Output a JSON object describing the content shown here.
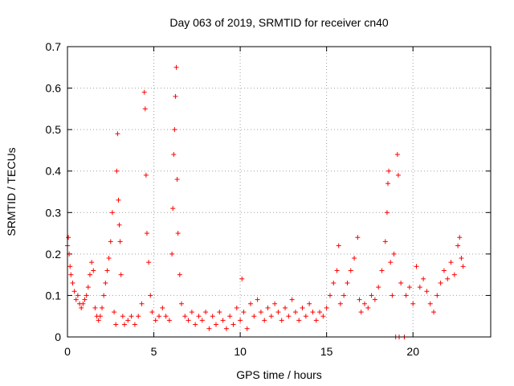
{
  "chart_data": {
    "type": "scatter",
    "title": "Day 063 of 2019, SRMTID for receiver cn40",
    "xlabel": "GPS time / hours",
    "ylabel": "SRMTID / TECUs",
    "xlim": [
      0,
      24.5
    ],
    "ylim": [
      0,
      0.7
    ],
    "xticks": [
      0,
      5,
      10,
      15,
      20
    ],
    "xtick_labels": [
      "0",
      "5",
      "10",
      "15",
      "20"
    ],
    "yticks": [
      0,
      0.1,
      0.2,
      0.3,
      0.4,
      0.5,
      0.6,
      0.7
    ],
    "ytick_labels": [
      "0",
      "0.1",
      "0.2",
      "0.3",
      "0.4",
      "0.5",
      "0.6",
      "0.7"
    ],
    "grid": true,
    "marker": "+",
    "color": "#ff0000",
    "series": [
      {
        "name": "SRMTID",
        "points": [
          [
            0.0,
            0.22
          ],
          [
            0.05,
            0.24
          ],
          [
            0.1,
            0.2
          ],
          [
            0.15,
            0.17
          ],
          [
            0.2,
            0.15
          ],
          [
            0.3,
            0.13
          ],
          [
            0.4,
            0.11
          ],
          [
            0.5,
            0.09
          ],
          [
            0.6,
            0.1
          ],
          [
            0.7,
            0.08
          ],
          [
            0.8,
            0.07
          ],
          [
            0.9,
            0.08
          ],
          [
            1.0,
            0.09
          ],
          [
            1.1,
            0.1
          ],
          [
            1.2,
            0.12
          ],
          [
            1.3,
            0.15
          ],
          [
            1.4,
            0.18
          ],
          [
            1.5,
            0.16
          ],
          [
            1.6,
            0.07
          ],
          [
            1.7,
            0.05
          ],
          [
            1.8,
            0.04
          ],
          [
            1.9,
            0.05
          ],
          [
            2.0,
            0.07
          ],
          [
            2.1,
            0.1
          ],
          [
            2.2,
            0.13
          ],
          [
            2.3,
            0.16
          ],
          [
            2.4,
            0.19
          ],
          [
            2.5,
            0.23
          ],
          [
            2.6,
            0.3
          ],
          [
            2.7,
            0.06
          ],
          [
            2.8,
            0.03
          ],
          [
            2.85,
            0.4
          ],
          [
            2.9,
            0.49
          ],
          [
            2.95,
            0.33
          ],
          [
            3.0,
            0.27
          ],
          [
            3.05,
            0.23
          ],
          [
            3.1,
            0.15
          ],
          [
            3.2,
            0.05
          ],
          [
            3.3,
            0.03
          ],
          [
            3.5,
            0.04
          ],
          [
            3.7,
            0.05
          ],
          [
            3.9,
            0.03
          ],
          [
            4.1,
            0.05
          ],
          [
            4.3,
            0.08
          ],
          [
            4.45,
            0.59
          ],
          [
            4.5,
            0.55
          ],
          [
            4.55,
            0.39
          ],
          [
            4.6,
            0.25
          ],
          [
            4.7,
            0.18
          ],
          [
            4.8,
            0.1
          ],
          [
            4.9,
            0.06
          ],
          [
            5.1,
            0.04
          ],
          [
            5.3,
            0.05
          ],
          [
            5.5,
            0.07
          ],
          [
            5.7,
            0.05
          ],
          [
            5.9,
            0.04
          ],
          [
            6.05,
            0.2
          ],
          [
            6.1,
            0.31
          ],
          [
            6.15,
            0.44
          ],
          [
            6.2,
            0.5
          ],
          [
            6.25,
            0.58
          ],
          [
            6.3,
            0.65
          ],
          [
            6.35,
            0.38
          ],
          [
            6.4,
            0.25
          ],
          [
            6.5,
            0.15
          ],
          [
            6.6,
            0.08
          ],
          [
            6.8,
            0.05
          ],
          [
            7.0,
            0.04
          ],
          [
            7.2,
            0.06
          ],
          [
            7.4,
            0.03
          ],
          [
            7.6,
            0.05
          ],
          [
            7.8,
            0.04
          ],
          [
            8.0,
            0.06
          ],
          [
            8.2,
            0.02
          ],
          [
            8.4,
            0.05
          ],
          [
            8.6,
            0.03
          ],
          [
            8.8,
            0.06
          ],
          [
            9.0,
            0.04
          ],
          [
            9.2,
            0.02
          ],
          [
            9.4,
            0.05
          ],
          [
            9.6,
            0.03
          ],
          [
            9.8,
            0.07
          ],
          [
            10.0,
            0.04
          ],
          [
            10.1,
            0.14
          ],
          [
            10.2,
            0.06
          ],
          [
            10.4,
            0.02
          ],
          [
            10.6,
            0.08
          ],
          [
            10.8,
            0.05
          ],
          [
            11.0,
            0.09
          ],
          [
            11.2,
            0.06
          ],
          [
            11.4,
            0.04
          ],
          [
            11.6,
            0.07
          ],
          [
            11.8,
            0.05
          ],
          [
            12.0,
            0.08
          ],
          [
            12.2,
            0.06
          ],
          [
            12.4,
            0.04
          ],
          [
            12.6,
            0.07
          ],
          [
            12.8,
            0.05
          ],
          [
            13.0,
            0.09
          ],
          [
            13.2,
            0.06
          ],
          [
            13.4,
            0.04
          ],
          [
            13.6,
            0.07
          ],
          [
            13.8,
            0.05
          ],
          [
            14.0,
            0.08
          ],
          [
            14.2,
            0.06
          ],
          [
            14.4,
            0.04
          ],
          [
            14.6,
            0.06
          ],
          [
            14.8,
            0.05
          ],
          [
            15.0,
            0.07
          ],
          [
            15.2,
            0.1
          ],
          [
            15.4,
            0.13
          ],
          [
            15.6,
            0.16
          ],
          [
            15.7,
            0.22
          ],
          [
            15.8,
            0.08
          ],
          [
            16.0,
            0.1
          ],
          [
            16.2,
            0.13
          ],
          [
            16.4,
            0.16
          ],
          [
            16.6,
            0.19
          ],
          [
            16.8,
            0.24
          ],
          [
            16.9,
            0.09
          ],
          [
            17.0,
            0.06
          ],
          [
            17.2,
            0.08
          ],
          [
            17.4,
            0.07
          ],
          [
            17.6,
            0.1
          ],
          [
            17.8,
            0.09
          ],
          [
            18.0,
            0.12
          ],
          [
            18.2,
            0.16
          ],
          [
            18.4,
            0.23
          ],
          [
            18.5,
            0.3
          ],
          [
            18.55,
            0.37
          ],
          [
            18.6,
            0.4
          ],
          [
            18.7,
            0.18
          ],
          [
            18.8,
            0.1
          ],
          [
            18.9,
            0.2
          ],
          [
            19.0,
            0.0
          ],
          [
            19.1,
            0.44
          ],
          [
            19.15,
            0.39
          ],
          [
            19.2,
            0.0
          ],
          [
            19.3,
            0.13
          ],
          [
            19.5,
            0.0
          ],
          [
            19.6,
            0.1
          ],
          [
            19.8,
            0.12
          ],
          [
            20.0,
            0.08
          ],
          [
            20.2,
            0.17
          ],
          [
            20.4,
            0.12
          ],
          [
            20.6,
            0.14
          ],
          [
            20.8,
            0.11
          ],
          [
            21.0,
            0.08
          ],
          [
            21.2,
            0.06
          ],
          [
            21.4,
            0.1
          ],
          [
            21.6,
            0.13
          ],
          [
            21.8,
            0.16
          ],
          [
            22.0,
            0.14
          ],
          [
            22.2,
            0.18
          ],
          [
            22.4,
            0.15
          ],
          [
            22.6,
            0.22
          ],
          [
            22.7,
            0.24
          ],
          [
            22.8,
            0.19
          ],
          [
            22.9,
            0.17
          ]
        ]
      }
    ]
  }
}
